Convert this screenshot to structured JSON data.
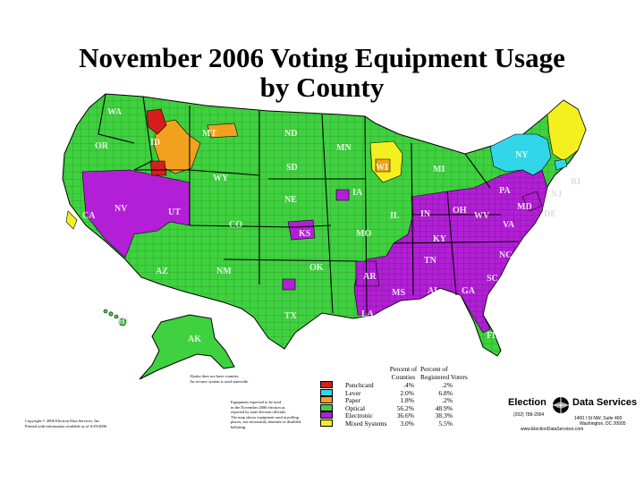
{
  "title_line1": "November 2006 Voting Equipment Usage",
  "title_line2": "by County",
  "colors": {
    "punchcard": "#d61e1e",
    "lever": "#31d6e8",
    "paper": "#f0a21e",
    "optical": "#3fd13f",
    "electronic": "#b21fd6",
    "mixed": "#f4f020"
  },
  "state_labels": [
    "WA",
    "OR",
    "ID",
    "MT",
    "ND",
    "MN",
    "WI",
    "MI",
    "SD",
    "WY",
    "NV",
    "UT",
    "CO",
    "NE",
    "IA",
    "IL",
    "IN",
    "OH",
    "PA",
    "NY",
    "KS",
    "MO",
    "KY",
    "WV",
    "VA",
    "MD",
    "DE",
    "NJ",
    "RI",
    "CA",
    "AZ",
    "NM",
    "OK",
    "AR",
    "TN",
    "NC",
    "SC",
    "GA",
    "AL",
    "MS",
    "LA",
    "TX",
    "FL",
    "AK",
    "HI"
  ],
  "legend": {
    "col1_header": "Percent of\nCounties",
    "col2_header": "Percent of\nRegistered Voters",
    "rows": [
      {
        "key": "punchcard",
        "label": "Punchcard",
        "counties": ".4%",
        "voters": ".2%"
      },
      {
        "key": "lever",
        "label": "Lever",
        "counties": "2.0%",
        "voters": "6.8%"
      },
      {
        "key": "paper",
        "label": "Paper",
        "counties": "1.8%",
        "voters": ".2%"
      },
      {
        "key": "optical",
        "label": "Optical",
        "counties": "56.2%",
        "voters": "48.9%"
      },
      {
        "key": "electronic",
        "label": "Electronic",
        "counties": "36.6%",
        "voters": "38.3%"
      },
      {
        "key": "mixed",
        "label": "Mixed Systems",
        "counties": "3.0%",
        "voters": "5.5%"
      }
    ]
  },
  "alaska_note": "Alaska does not have counties.\nAn at-once system is used statewide.",
  "equipment_note": "Equipment expected to be used\nin the November 2006 election as\nreported by state election officials.\nThe map shows equipment used at polling\nplaces, not necessarily absentee or disabled\nballoting.",
  "copyright": "Copyright © 2006 Election Data Services, Inc.\nPrinted with information available as of 6/29/2006",
  "company": {
    "word1": "Election",
    "word2": "Data Services",
    "phone": "(202) 789-2004",
    "address1": "1400 I St NW, Suite 400",
    "address2": "Washington, DC 20005",
    "website": "www.ElectionDataServices.com"
  }
}
